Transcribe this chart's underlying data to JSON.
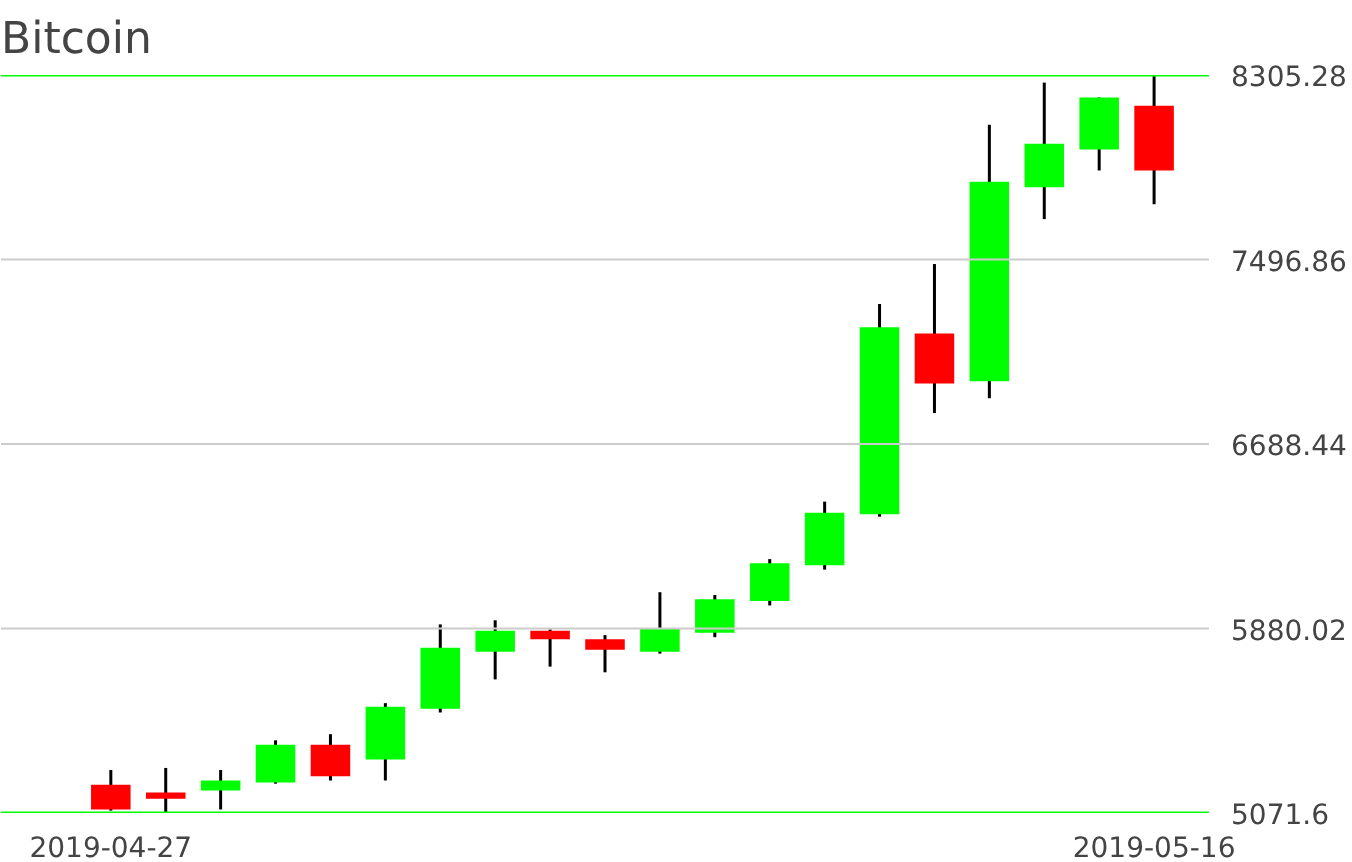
{
  "chart_data": {
    "type": "candlestick",
    "title": "Bitcoin",
    "x": [
      "2019-04-27",
      "2019-04-28",
      "2019-04-29",
      "2019-04-30",
      "2019-05-01",
      "2019-05-02",
      "2019-05-03",
      "2019-05-04",
      "2019-05-05",
      "2019-05-06",
      "2019-05-07",
      "2019-05-08",
      "2019-05-09",
      "2019-05-10",
      "2019-05-11",
      "2019-05-12",
      "2019-05-13",
      "2019-05-14",
      "2019-05-15",
      "2019-05-16"
    ],
    "ohlc": [
      [
        5195,
        5260,
        5082,
        5087
      ],
      [
        5161,
        5269,
        5075,
        5134
      ],
      [
        5170,
        5260,
        5087,
        5214
      ],
      [
        5205,
        5390,
        5200,
        5371
      ],
      [
        5371,
        5417,
        5214,
        5233
      ],
      [
        5306,
        5553,
        5214,
        5537
      ],
      [
        5528,
        5898,
        5512,
        5796
      ],
      [
        5778,
        5916,
        5657,
        5870
      ],
      [
        5870,
        5876,
        5713,
        5833
      ],
      [
        5833,
        5851,
        5688,
        5787
      ],
      [
        5778,
        6039,
        5770,
        5879
      ],
      [
        5861,
        6027,
        5842,
        6008
      ],
      [
        6000,
        6184,
        5981,
        6166
      ],
      [
        6157,
        6436,
        6138,
        6387
      ],
      [
        6381,
        7302,
        6370,
        7200
      ],
      [
        7173,
        7477,
        6824,
        6954
      ],
      [
        6963,
        8087,
        6889,
        7838
      ],
      [
        7813,
        8272,
        7674,
        8004
      ],
      [
        7979,
        8207,
        7887,
        8207
      ],
      [
        8170,
        8300,
        7739,
        7887
      ]
    ],
    "colors": [
      "#ff0000",
      "#ff0000",
      "#00ff00",
      "#00ff00",
      "#ff0000",
      "#00ff00",
      "#00ff00",
      "#00ff00",
      "#ff0000",
      "#ff0000",
      "#00ff00",
      "#00ff00",
      "#00ff00",
      "#00ff00",
      "#00ff00",
      "#ff0000",
      "#00ff00",
      "#00ff00",
      "#00ff00",
      "#ff0000"
    ],
    "xlim": [
      "2019-04-25",
      "2019-05-17"
    ],
    "xticks": [
      "2019-04-27",
      "2019-05-16"
    ],
    "ylim": [
      5071.6,
      8305.28
    ],
    "yticks": [
      5071.6,
      5880.02,
      6688.44,
      7496.86,
      8305.28
    ],
    "grid": "y"
  }
}
